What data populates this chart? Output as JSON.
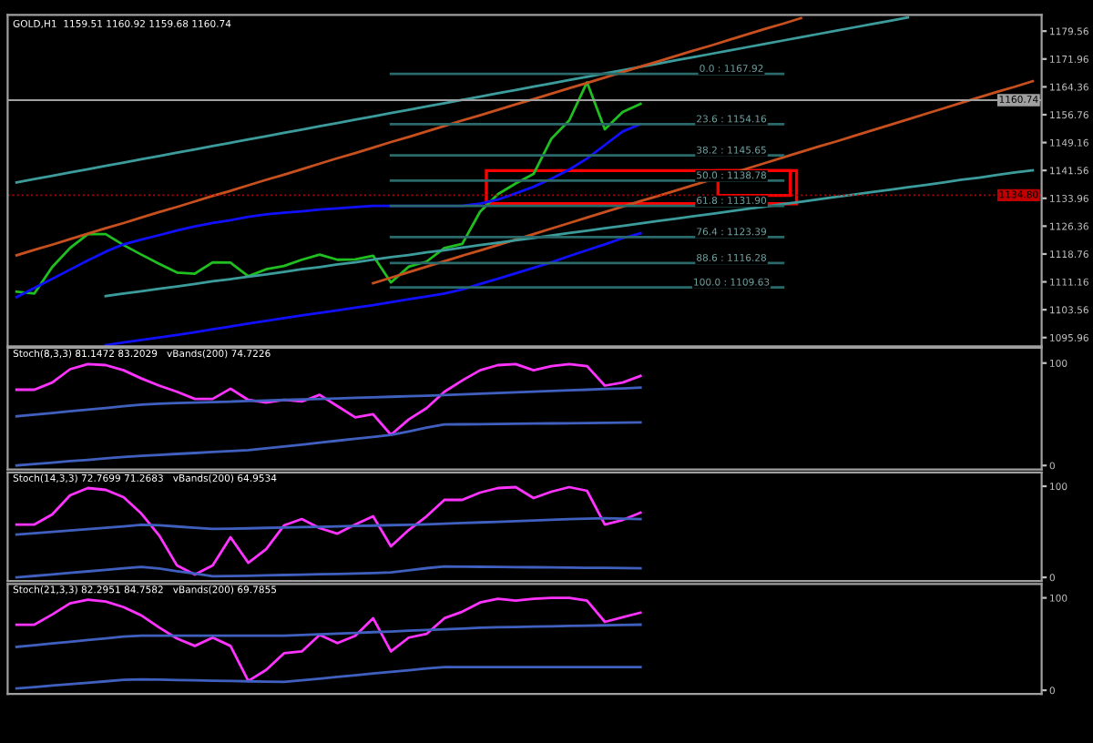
{
  "chart_data": [
    {
      "type": "line",
      "title": "GOLD,H1  1159.51 1160.92 1159.68 1160.74",
      "categories": [
        null,
        null,
        null,
        null,
        null,
        null,
        null,
        null,
        null,
        null,
        null,
        null,
        null,
        null,
        null,
        null,
        null,
        null,
        null,
        null,
        null,
        null,
        null,
        null,
        null,
        null,
        null,
        null,
        null,
        null,
        null,
        null,
        null,
        null,
        null,
        null,
        null,
        null,
        null,
        null,
        null,
        null,
        null,
        null,
        null,
        null,
        null,
        null,
        null,
        null,
        null,
        null,
        null,
        null,
        null,
        null,
        null,
        null
      ],
      "ylim": [
        1093.6,
        1184.0
      ],
      "yticks": [
        1179.56,
        1171.96,
        1164.36,
        1156.76,
        1149.16,
        1141.56,
        1133.96,
        1126.36,
        1118.76,
        1111.16,
        1103.56,
        1095.96
      ],
      "tick_labels": "y",
      "grid": false,
      "legend": false,
      "ref_lines": [
        {
          "axis": "y",
          "value": 1160.74,
          "label": "1160.74",
          "color": "#a0a0a0",
          "line_style": "solid"
        },
        {
          "axis": "y",
          "value": 1134.8,
          "label": "1134.80",
          "color": "#c00000",
          "line_style": "dotted"
        }
      ],
      "series": [
        {
          "color": "#1fbf1f",
          "values": [
            1108.5,
            1108.0,
            1115.2,
            1120.4,
            1124.2,
            1124.2,
            1121.2,
            1118.6,
            1116.1,
            1113.7,
            1113.4,
            1116.5,
            1116.4,
            1112.7,
            1114.6,
            1115.5,
            1117.2,
            1118.6,
            1117.2,
            1117.3,
            1118.3,
            1111.0,
            1115.3,
            1116.7,
            1120.4,
            1121.5,
            1130.3,
            1135.1,
            1138.0,
            1140.6,
            1150.2,
            1155.2,
            1165.6,
            1152.8,
            1157.5,
            1159.7,
            null,
            null,
            null,
            null,
            null,
            null,
            null,
            null,
            null,
            null,
            null,
            null,
            null,
            null,
            null,
            null,
            null,
            null,
            null,
            null,
            null,
            null
          ]
        },
        {
          "color": "#1010ff",
          "values": [
            1107.0,
            1109.5,
            1112.0,
            1114.5,
            1117.0,
            1119.4,
            1121.4,
            1122.7,
            1123.9,
            1125.2,
            1126.3,
            1127.2,
            1128.0,
            1128.9,
            1129.6,
            1130.0,
            1130.4,
            1130.9,
            1131.2,
            1131.6,
            1131.9,
            1131.9,
            1131.9,
            1131.9,
            1131.9,
            1131.9,
            1132.5,
            1133.6,
            1135.3,
            1137.1,
            1139.3,
            1141.8,
            1144.8,
            1148.5,
            1152.2,
            1154.2,
            null,
            null,
            null,
            null,
            null,
            null,
            null,
            null,
            null,
            null,
            null,
            null,
            null,
            null,
            null,
            null,
            null,
            null,
            null,
            null,
            null,
            null
          ]
        },
        {
          "color": "#1010ff",
          "values": [
            null,
            null,
            null,
            null,
            null,
            1093.9,
            1094.6,
            1095.3,
            1096.0,
            1096.7,
            1097.4,
            1098.2,
            1099.0,
            1099.8,
            1100.5,
            1101.3,
            1102.0,
            1102.7,
            1103.4,
            1104.1,
            1104.8,
            1105.6,
            1106.4,
            1107.2,
            1108.0,
            1109.1,
            1110.6,
            1112.0,
            1113.5,
            1115.0,
            1116.5,
            1118.2,
            1119.8,
            1121.4,
            1123.1,
            1124.4,
            null,
            null,
            null,
            null,
            null,
            null,
            null,
            null,
            null,
            null,
            null,
            null,
            null,
            null,
            null,
            null,
            null,
            null,
            null,
            null,
            null,
            null
          ]
        },
        {
          "color": "#3c9c9c",
          "values": [
            1138.3,
            1139.2,
            1140.1,
            1141.0,
            1141.9,
            1142.8,
            1143.7,
            1144.6,
            1145.5,
            1146.4,
            1147.3,
            1148.2,
            1149.1,
            1150.0,
            1150.9,
            1151.8,
            1152.7,
            1153.6,
            1154.5,
            1155.4,
            1156.3,
            1157.2,
            1158.1,
            1159.0,
            1159.9,
            1160.8,
            1161.7,
            1162.6,
            1163.5,
            1164.4,
            1165.3,
            1166.2,
            1167.1,
            1168.0,
            1168.9,
            1169.8,
            1170.7,
            1171.6,
            1172.5,
            1173.4,
            1174.3,
            1175.2,
            1176.1,
            1177.0,
            1177.9,
            1178.8,
            1179.7,
            1180.6,
            1181.5,
            1182.4,
            1183.3,
            null,
            null,
            null,
            null,
            null,
            null,
            null
          ]
        },
        {
          "color": "#c8501e",
          "values": [
            1118.4,
            1119.9,
            1121.3,
            1122.8,
            1124.3,
            1125.8,
            1127.2,
            1128.7,
            1130.2,
            1131.6,
            1133.1,
            1134.6,
            1136.0,
            1137.5,
            1139.0,
            1140.4,
            1141.9,
            1143.4,
            1144.9,
            1146.3,
            1147.8,
            1149.3,
            1150.7,
            1152.2,
            1153.7,
            1155.2,
            1156.6,
            1158.1,
            1159.6,
            1161.0,
            1162.5,
            1164.0,
            1165.4,
            1166.9,
            1168.4,
            1169.9,
            1171.3,
            1172.8,
            1174.3,
            1175.7,
            1177.2,
            1178.7,
            1180.2,
            1181.6,
            1183.1,
            null,
            null,
            null,
            null,
            null,
            null,
            null,
            null,
            null,
            null,
            null,
            null,
            null
          ]
        },
        {
          "color": "#c8501e",
          "values": [
            null,
            null,
            null,
            null,
            null,
            null,
            null,
            null,
            null,
            null,
            null,
            null,
            null,
            null,
            null,
            null,
            null,
            null,
            null,
            null,
            1110.8,
            1112.3,
            1113.8,
            1115.3,
            1116.8,
            1118.3,
            1119.7,
            1121.2,
            1122.7,
            1124.2,
            1125.7,
            1127.2,
            1128.7,
            1130.2,
            1131.7,
            1133.2,
            1134.6,
            1136.1,
            1137.6,
            1139.1,
            1140.6,
            1142.1,
            1143.6,
            1145.1,
            1146.6,
            1148.1,
            1149.5,
            1151.0,
            1152.5,
            1154.0,
            1155.5,
            1157.0,
            1158.5,
            1160.0,
            1161.5,
            1163.0,
            1164.4,
            1165.9
          ]
        },
        {
          "color": "#3c9c9c",
          "values": [
            null,
            null,
            null,
            null,
            null,
            1107.3,
            1108.0,
            1108.6,
            1109.3,
            1109.9,
            1110.6,
            1111.3,
            1111.9,
            1112.6,
            1113.2,
            1113.9,
            1114.6,
            1115.2,
            1115.9,
            1116.5,
            1117.2,
            1117.9,
            1118.5,
            1119.2,
            1119.8,
            1120.5,
            1121.2,
            1121.8,
            1122.5,
            1123.1,
            1123.8,
            1124.5,
            1125.1,
            1125.8,
            1126.4,
            1127.1,
            1127.8,
            1128.4,
            1129.1,
            1129.7,
            1130.4,
            1131.1,
            1131.7,
            1132.4,
            1133.0,
            1133.7,
            1134.4,
            1135.0,
            1135.7,
            1136.3,
            1137.0,
            1137.6,
            1138.3,
            1139.0,
            1139.6,
            1140.3,
            1141.0,
            1141.6
          ]
        },
        {
          "color": "#2a6a6a",
          "values": [
            null,
            null,
            null,
            null,
            null,
            null,
            null,
            null,
            null,
            null,
            null,
            null,
            null,
            null,
            null,
            null,
            null,
            null,
            null,
            null,
            null,
            1167.92,
            1167.92,
            1167.92,
            1167.92,
            1167.92,
            1167.92,
            1167.92,
            1167.92,
            1167.92,
            1167.92,
            1167.92,
            1167.92,
            1167.92,
            1167.92,
            1167.92,
            1167.92,
            1167.92,
            1167.92,
            1167.92,
            1167.92,
            1167.92,
            1167.92,
            1167.92,
            null,
            null,
            null,
            null,
            null,
            null,
            null,
            null,
            null,
            null,
            null,
            null,
            null,
            null
          ]
        },
        {
          "color": "#2a6a6a",
          "values": [
            null,
            null,
            null,
            null,
            null,
            null,
            null,
            null,
            null,
            null,
            null,
            null,
            null,
            null,
            null,
            null,
            null,
            null,
            null,
            null,
            null,
            1154.16,
            1154.16,
            1154.16,
            1154.16,
            1154.16,
            1154.16,
            1154.16,
            1154.16,
            1154.16,
            1154.16,
            1154.16,
            1154.16,
            1154.16,
            1154.16,
            1154.16,
            1154.16,
            1154.16,
            1154.16,
            1154.16,
            1154.16,
            1154.16,
            1154.16,
            1154.16,
            null,
            null,
            null,
            null,
            null,
            null,
            null,
            null,
            null,
            null,
            null,
            null,
            null,
            null
          ]
        },
        {
          "color": "#2a6a6a",
          "values": [
            null,
            null,
            null,
            null,
            null,
            null,
            null,
            null,
            null,
            null,
            null,
            null,
            null,
            null,
            null,
            null,
            null,
            null,
            null,
            null,
            null,
            1145.65,
            1145.65,
            1145.65,
            1145.65,
            1145.65,
            1145.65,
            1145.65,
            1145.65,
            1145.65,
            1145.65,
            1145.65,
            1145.65,
            1145.65,
            1145.65,
            1145.65,
            1145.65,
            1145.65,
            1145.65,
            1145.65,
            1145.65,
            1145.65,
            1145.65,
            1145.65,
            null,
            null,
            null,
            null,
            null,
            null,
            null,
            null,
            null,
            null,
            null,
            null,
            null,
            null
          ]
        },
        {
          "color": "#2a6a6a",
          "values": [
            null,
            null,
            null,
            null,
            null,
            null,
            null,
            null,
            null,
            null,
            null,
            null,
            null,
            null,
            null,
            null,
            null,
            null,
            null,
            null,
            null,
            1138.78,
            1138.78,
            1138.78,
            1138.78,
            1138.78,
            1138.78,
            1138.78,
            1138.78,
            1138.78,
            1138.78,
            1138.78,
            1138.78,
            1138.78,
            1138.78,
            1138.78,
            1138.78,
            1138.78,
            1138.78,
            1138.78,
            1138.78,
            1138.78,
            1138.78,
            1138.78,
            null,
            null,
            null,
            null,
            null,
            null,
            null,
            null,
            null,
            null,
            null,
            null,
            null,
            null
          ]
        },
        {
          "color": "#2a6a6a",
          "values": [
            null,
            null,
            null,
            null,
            null,
            null,
            null,
            null,
            null,
            null,
            null,
            null,
            null,
            null,
            null,
            null,
            null,
            null,
            null,
            null,
            null,
            1131.9,
            1131.9,
            1131.9,
            1131.9,
            1131.9,
            1131.9,
            1131.9,
            1131.9,
            1131.9,
            1131.9,
            1131.9,
            1131.9,
            1131.9,
            1131.9,
            1131.9,
            1131.9,
            1131.9,
            1131.9,
            1131.9,
            1131.9,
            1131.9,
            1131.9,
            1131.9,
            null,
            null,
            null,
            null,
            null,
            null,
            null,
            null,
            null,
            null,
            null,
            null,
            null,
            null
          ]
        },
        {
          "color": "#2a6a6a",
          "values": [
            null,
            null,
            null,
            null,
            null,
            null,
            null,
            null,
            null,
            null,
            null,
            null,
            null,
            null,
            null,
            null,
            null,
            null,
            null,
            null,
            null,
            1123.39,
            1123.39,
            1123.39,
            1123.39,
            1123.39,
            1123.39,
            1123.39,
            1123.39,
            1123.39,
            1123.39,
            1123.39,
            1123.39,
            1123.39,
            1123.39,
            1123.39,
            1123.39,
            1123.39,
            1123.39,
            1123.39,
            1123.39,
            1123.39,
            1123.39,
            1123.39,
            null,
            null,
            null,
            null,
            null,
            null,
            null,
            null,
            null,
            null,
            null,
            null,
            null,
            null
          ]
        },
        {
          "color": "#2a6a6a",
          "values": [
            null,
            null,
            null,
            null,
            null,
            null,
            null,
            null,
            null,
            null,
            null,
            null,
            null,
            null,
            null,
            null,
            null,
            null,
            null,
            null,
            null,
            1116.28,
            1116.28,
            1116.28,
            1116.28,
            1116.28,
            1116.28,
            1116.28,
            1116.28,
            1116.28,
            1116.28,
            1116.28,
            1116.28,
            1116.28,
            1116.28,
            1116.28,
            1116.28,
            1116.28,
            1116.28,
            1116.28,
            1116.28,
            1116.28,
            1116.28,
            1116.28,
            null,
            null,
            null,
            null,
            null,
            null,
            null,
            null,
            null,
            null,
            null,
            null,
            null,
            null
          ]
        },
        {
          "color": "#2a6a6a",
          "values": [
            null,
            null,
            null,
            null,
            null,
            null,
            null,
            null,
            null,
            null,
            null,
            null,
            null,
            null,
            null,
            null,
            null,
            null,
            null,
            null,
            null,
            1109.63,
            1109.63,
            1109.63,
            1109.63,
            1109.63,
            1109.63,
            1109.63,
            1109.63,
            1109.63,
            1109.63,
            1109.63,
            1109.63,
            1109.63,
            1109.63,
            1109.63,
            1109.63,
            1109.63,
            1109.63,
            1109.63,
            1109.63,
            1109.63,
            1109.63,
            1109.63,
            null,
            null,
            null,
            null,
            null,
            null,
            null,
            null,
            null,
            null,
            null,
            null,
            null,
            null
          ]
        }
      ],
      "annotations": [
        {
          "text": "0.0 : 1167.92",
          "y": 1167.92
        },
        {
          "text": "23.6 : 1154.16",
          "y": 1154.16
        },
        {
          "text": "38.2 : 1145.65",
          "y": 1145.65
        },
        {
          "text": "50.0 : 1138.78",
          "y": 1138.78
        },
        {
          "text": "61.8 : 1131.90",
          "y": 1131.9
        },
        {
          "text": "76.4 : 1123.39",
          "y": 1123.39
        },
        {
          "text": "88.6 : 1116.28",
          "y": 1116.28
        },
        {
          "text": "100.0 : 1109.63",
          "y": 1109.63
        }
      ]
    },
    {
      "type": "line",
      "title": "Stoch(8,3,3) 81.1472 83.2029   vBands(200) 74.7226",
      "categories": [
        null,
        null,
        null,
        null,
        null,
        null,
        null,
        null,
        null,
        null,
        null,
        null,
        null,
        null,
        null,
        null,
        null,
        null,
        null,
        null,
        null,
        null,
        null,
        null,
        null,
        null,
        null,
        null,
        null,
        null,
        null,
        null,
        null,
        null,
        null,
        null,
        null,
        null,
        null,
        null,
        null,
        null,
        null,
        null,
        null,
        null,
        null,
        null,
        null,
        null,
        null,
        null,
        null,
        null,
        null,
        null,
        null,
        null
      ],
      "ylim": [
        -4,
        115
      ],
      "yticks": [
        0,
        100
      ],
      "tick_labels": "y",
      "grid": false,
      "legend": false,
      "series": [
        {
          "color": "#ff33ff",
          "values": [
            74,
            74,
            81,
            94,
            99,
            98,
            93,
            85,
            78,
            72,
            65,
            65,
            75,
            64,
            61.5,
            64,
            62.5,
            69,
            58,
            47,
            50,
            30,
            45,
            56,
            72,
            83,
            93,
            98,
            99,
            93,
            97,
            99,
            97,
            78,
            81,
            87.5,
            null,
            null,
            null,
            null,
            null,
            null,
            null,
            null,
            null,
            null,
            null,
            null,
            null,
            null,
            null,
            null,
            null,
            null,
            null,
            null,
            null,
            null
          ]
        },
        {
          "color": "#4060c0",
          "values": [
            48,
            49.6,
            51.3,
            53,
            54.6,
            56.2,
            57.9,
            59.5,
            60.4,
            60.9,
            61.4,
            61.9,
            62.4,
            63,
            63.5,
            64,
            64.5,
            65,
            65.5,
            66.1,
            66.6,
            67.1,
            67.6,
            68.2,
            68.8,
            69.5,
            70.1,
            70.8,
            71.4,
            72.1,
            72.7,
            73.4,
            74,
            74.7,
            75.3,
            76,
            null,
            null,
            null,
            null,
            null,
            null,
            null,
            null,
            null,
            null,
            null,
            null,
            null,
            null,
            null,
            null,
            null,
            null,
            null,
            null,
            null,
            null
          ]
        },
        {
          "color": "#4060c0",
          "values": [
            0,
            1.4,
            2.8,
            4.2,
            5.5,
            6.9,
            8.3,
            9.5,
            10.4,
            11.3,
            12.2,
            13.1,
            14,
            14.9,
            16.7,
            18.6,
            20.4,
            22.3,
            24.2,
            26.1,
            27.9,
            29.8,
            33.3,
            37,
            40,
            40.2,
            40.4,
            40.6,
            40.8,
            40.9,
            41.1,
            41.3,
            41.5,
            41.6,
            41.8,
            42,
            null,
            null,
            null,
            null,
            null,
            null,
            null,
            null,
            null,
            null,
            null,
            null,
            null,
            null,
            null,
            null,
            null,
            null,
            null,
            null,
            null,
            null
          ]
        }
      ]
    },
    {
      "type": "line",
      "title": "Stoch(14,3,3) 72.7699 71.2683   vBands(200) 64.9534",
      "categories": [
        null,
        null,
        null,
        null,
        null,
        null,
        null,
        null,
        null,
        null,
        null,
        null,
        null,
        null,
        null,
        null,
        null,
        null,
        null,
        null,
        null,
        null,
        null,
        null,
        null,
        null,
        null,
        null,
        null,
        null,
        null,
        null,
        null,
        null,
        null,
        null,
        null,
        null,
        null,
        null,
        null,
        null,
        null,
        null,
        null,
        null,
        null,
        null,
        null,
        null,
        null,
        null,
        null,
        null,
        null,
        null,
        null,
        null
      ],
      "ylim": [
        -4,
        115
      ],
      "yticks": [
        0,
        100
      ],
      "tick_labels": "y",
      "grid": false,
      "legend": false,
      "series": [
        {
          "color": "#ff33ff",
          "values": [
            58,
            58,
            69,
            90,
            98,
            96,
            88,
            70,
            46,
            13,
            3,
            13,
            44,
            16,
            31,
            57,
            64,
            54,
            48,
            58,
            67,
            34,
            52,
            67,
            85,
            85,
            93,
            98,
            99,
            87,
            94,
            99,
            95,
            58,
            63,
            71,
            null,
            null,
            null,
            null,
            null,
            null,
            null,
            null,
            null,
            null,
            null,
            null,
            null,
            null,
            null,
            null,
            null,
            null,
            null,
            null,
            null,
            null
          ]
        },
        {
          "color": "#4060c0",
          "values": [
            47,
            48.5,
            50,
            51.5,
            53,
            54.5,
            56,
            57.6,
            57.1,
            55.8,
            54.5,
            53.2,
            53.4,
            53.8,
            54.3,
            54.7,
            55.1,
            55.5,
            56,
            56.4,
            56.8,
            57.3,
            57.7,
            58.2,
            58.9,
            59.6,
            60.3,
            61,
            61.7,
            62.4,
            63.1,
            63.8,
            64.5,
            64.9,
            64.4,
            64,
            null,
            null,
            null,
            null,
            null,
            null,
            null,
            null,
            null,
            null,
            null,
            null,
            null,
            null,
            null,
            null,
            null,
            null,
            null,
            null,
            null,
            null
          ]
        },
        {
          "color": "#4060c0",
          "values": [
            0,
            1.6,
            3.3,
            4.9,
            6.6,
            8.2,
            9.9,
            11.5,
            9.7,
            6.8,
            4.2,
            1.3,
            1.4,
            1.8,
            2.2,
            2.6,
            3,
            3.4,
            3.8,
            4.3,
            4.7,
            5.5,
            7.8,
            10.1,
            12,
            11.8,
            11.6,
            11.4,
            11.3,
            11.1,
            10.9,
            10.7,
            10.5,
            10.4,
            10.2,
            10,
            null,
            null,
            null,
            null,
            null,
            null,
            null,
            null,
            null,
            null,
            null,
            null,
            null,
            null,
            null,
            null,
            null,
            null,
            null,
            null,
            null,
            null
          ]
        }
      ]
    },
    {
      "type": "line",
      "title": "Stoch(21,3,3) 82.2951 84.7582   vBands(200) 69.7855",
      "categories": [
        null,
        null,
        null,
        null,
        null,
        null,
        null,
        null,
        null,
        null,
        null,
        null,
        null,
        null,
        null,
        null,
        null,
        null,
        null,
        null,
        null,
        null,
        null,
        null,
        null,
        null,
        null,
        null,
        null,
        null,
        null,
        null,
        null,
        null,
        null,
        null,
        null,
        null,
        null,
        null,
        null,
        null,
        null,
        null,
        null,
        null,
        null,
        null,
        null,
        null,
        null,
        null,
        null,
        null,
        null,
        null,
        null,
        null
      ],
      "ylim": [
        -4,
        115
      ],
      "yticks": [
        0,
        100
      ],
      "tick_labels": "y",
      "grid": false,
      "legend": false,
      "series": [
        {
          "color": "#ff33ff",
          "values": [
            71,
            71,
            82,
            94,
            98,
            96,
            90,
            81,
            68,
            56,
            48,
            57,
            48,
            10,
            22,
            40,
            42,
            60,
            51,
            59,
            78,
            42,
            57,
            61,
            78,
            85,
            95,
            99,
            97,
            99,
            100,
            100,
            97,
            74,
            79,
            84,
            null,
            null,
            null,
            null,
            null,
            null,
            null,
            null,
            null,
            null,
            null,
            null,
            null,
            null,
            null,
            null,
            null,
            null,
            null,
            null,
            null,
            null
          ]
        },
        {
          "color": "#4060c0",
          "values": [
            47,
            48.8,
            50.7,
            52.5,
            54.4,
            56.2,
            58.1,
            59,
            59,
            59,
            59,
            59,
            59,
            59,
            59,
            59,
            59.8,
            60.5,
            61.3,
            62.1,
            62.9,
            63.6,
            64.4,
            65.2,
            66,
            66.8,
            67.6,
            68.2,
            68.5,
            68.9,
            69.2,
            69.6,
            69.9,
            70.3,
            70.6,
            71,
            null,
            null,
            null,
            null,
            null,
            null,
            null,
            null,
            null,
            null,
            null,
            null,
            null,
            null,
            null,
            null,
            null,
            null,
            null,
            null,
            null,
            null
          ]
        },
        {
          "color": "#4060c0",
          "values": [
            2,
            3.5,
            5.1,
            6.6,
            8.2,
            9.7,
            11.2,
            11.8,
            11.5,
            11.1,
            10.8,
            10.4,
            10.1,
            9.7,
            9.4,
            9,
            10.8,
            12.6,
            14.5,
            16.3,
            18.1,
            19.9,
            21.7,
            23.5,
            25,
            25,
            25,
            25,
            25,
            25,
            25,
            25,
            25,
            25,
            25,
            25,
            null,
            null,
            null,
            null,
            null,
            null,
            null,
            null,
            null,
            null,
            null,
            null,
            null,
            null,
            null,
            null,
            null,
            null,
            null,
            null,
            null,
            null
          ]
        }
      ]
    }
  ]
}
